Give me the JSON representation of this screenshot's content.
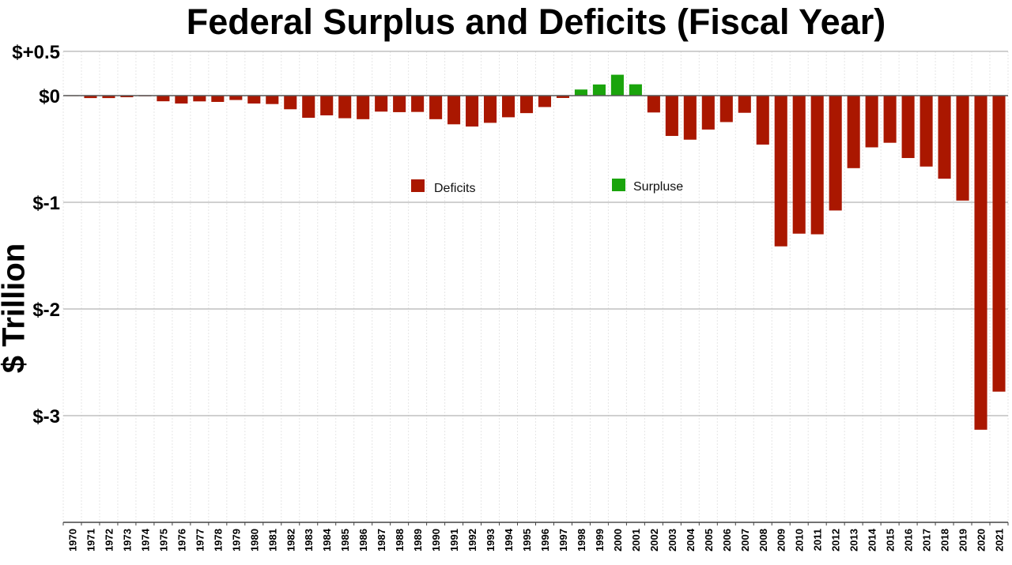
{
  "chart_data": {
    "type": "bar",
    "title": "Federal Surplus and Deficits (Fiscal Year)",
    "xlabel": "",
    "ylabel": "$ Trillion",
    "ylim": [
      -4,
      0.5
    ],
    "grid": true,
    "y_ticks": [
      {
        "value": 0.5,
        "label": "$+0.5"
      },
      {
        "value": 0,
        "label": "$0"
      },
      {
        "value": -1,
        "label": "$-1"
      },
      {
        "value": -2,
        "label": "$-2"
      },
      {
        "value": -3,
        "label": "$-3"
      }
    ],
    "legend_position": "inside-top-center",
    "series": [
      {
        "name": "Deficits",
        "color": "#AA1700"
      },
      {
        "name": "Surpluse",
        "color": "#1AA40C"
      }
    ],
    "categories": [
      "1970",
      "1971",
      "1972",
      "1973",
      "1974",
      "1975",
      "1976",
      "1977",
      "1978",
      "1979",
      "1980",
      "1981",
      "1982",
      "1983",
      "1984",
      "1985",
      "1986",
      "1987",
      "1988",
      "1989",
      "1990",
      "1991",
      "1992",
      "1993",
      "1994",
      "1995",
      "1996",
      "1997",
      "1998",
      "1999",
      "2000",
      "2001",
      "2002",
      "2003",
      "2004",
      "2005",
      "2006",
      "2007",
      "2008",
      "2009",
      "2010",
      "2011",
      "2012",
      "2013",
      "2014",
      "2015",
      "2016",
      "2017",
      "2018",
      "2019",
      "2020",
      "2021"
    ],
    "values": [
      -0.003,
      -0.023,
      -0.023,
      -0.015,
      -0.006,
      -0.053,
      -0.074,
      -0.054,
      -0.059,
      -0.041,
      -0.074,
      -0.079,
      -0.128,
      -0.208,
      -0.185,
      -0.212,
      -0.221,
      -0.15,
      -0.155,
      -0.153,
      -0.221,
      -0.269,
      -0.29,
      -0.255,
      -0.203,
      -0.164,
      -0.107,
      -0.022,
      0.069,
      0.126,
      0.236,
      0.128,
      -0.158,
      -0.378,
      -0.413,
      -0.318,
      -0.248,
      -0.161,
      -0.459,
      -1.413,
      -1.294,
      -1.3,
      -1.077,
      -0.68,
      -0.485,
      -0.442,
      -0.585,
      -0.665,
      -0.779,
      -0.984,
      -3.132,
      -2.775
    ]
  }
}
